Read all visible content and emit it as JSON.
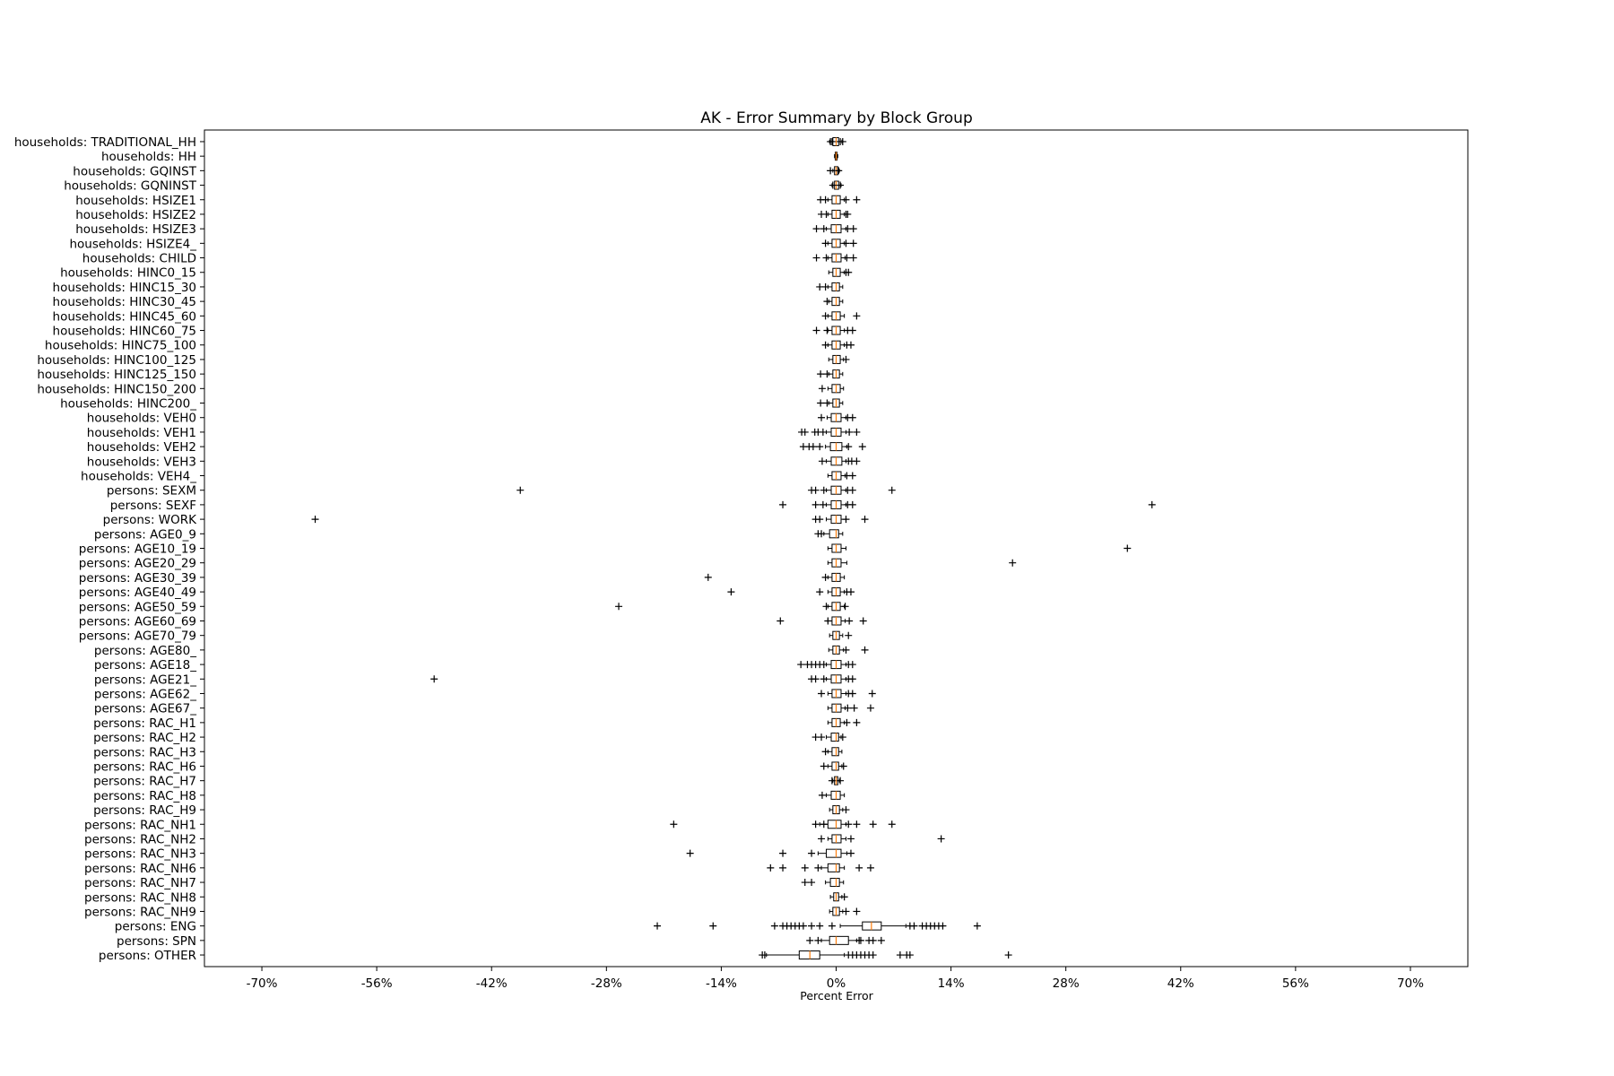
{
  "chart_data": {
    "type": "box",
    "orientation": "horizontal",
    "title": "AK - Error Summary by Block Group",
    "xlabel": "Percent Error",
    "ylabel": "",
    "xlim": [
      -77,
      77
    ],
    "xticks": [
      -70,
      -56,
      -42,
      -28,
      -14,
      0,
      14,
      28,
      42,
      56,
      70
    ],
    "xtick_labels": [
      "-70%",
      "-56%",
      "-42%",
      "-28%",
      "-14%",
      "0%",
      "14%",
      "28%",
      "42%",
      "56%",
      "70%"
    ],
    "grid": false,
    "colors": {
      "box": "#000000",
      "median": "#ff7f0e",
      "flier": "#000000"
    },
    "series": [
      {
        "label": "households: TRADITIONAL_HH",
        "q1": -0.4,
        "median": 0,
        "q3": 0.3,
        "whislo": -0.8,
        "whishi": 0.7,
        "fliers": [
          -0.7,
          -0.5,
          0.5,
          0.8
        ]
      },
      {
        "label": "households: HH",
        "q1": -0.1,
        "median": 0,
        "q3": 0.1,
        "whislo": -0.2,
        "whishi": 0.2,
        "fliers": []
      },
      {
        "label": "households: GQINST",
        "q1": -0.2,
        "median": 0,
        "q3": 0.2,
        "whislo": -0.4,
        "whishi": 0.4,
        "fliers": [
          -0.7,
          0.3
        ]
      },
      {
        "label": "households: GQNINST",
        "q1": -0.2,
        "median": 0,
        "q3": 0.3,
        "whislo": -0.5,
        "whishi": 0.6,
        "fliers": [
          -0.4,
          0.5
        ]
      },
      {
        "label": "households: HSIZE1",
        "q1": -0.5,
        "median": 0,
        "q3": 0.5,
        "whislo": -1.0,
        "whishi": 1.0,
        "fliers": [
          -1.9,
          -1.3,
          1.2,
          2.5
        ]
      },
      {
        "label": "households: HSIZE2",
        "q1": -0.5,
        "median": 0,
        "q3": 0.5,
        "whislo": -1.0,
        "whishi": 1.0,
        "fliers": [
          -1.8,
          -1.2,
          1.2,
          1.4
        ]
      },
      {
        "label": "households: HSIZE3",
        "q1": -0.6,
        "median": 0,
        "q3": 0.6,
        "whislo": -1.2,
        "whishi": 1.2,
        "fliers": [
          -2.4,
          -1.5,
          1.4,
          2.1
        ]
      },
      {
        "label": "households: HSIZE4_",
        "q1": -0.5,
        "median": 0,
        "q3": 0.5,
        "whislo": -1.0,
        "whishi": 1.0,
        "fliers": [
          -1.3,
          1.2,
          2.1
        ]
      },
      {
        "label": "households: CHILD",
        "q1": -0.5,
        "median": 0,
        "q3": 0.6,
        "whislo": -1.0,
        "whishi": 1.1,
        "fliers": [
          -2.4,
          -1.2,
          1.3,
          2.1
        ]
      },
      {
        "label": "households: HINC0_15",
        "q1": -0.4,
        "median": 0,
        "q3": 0.5,
        "whislo": -0.9,
        "whishi": 1.0,
        "fliers": [
          1.2,
          1.5
        ]
      },
      {
        "label": "households: HINC15_30",
        "q1": -0.5,
        "median": 0,
        "q3": 0.4,
        "whislo": -1.0,
        "whishi": 0.8,
        "fliers": [
          -2.0,
          -1.3
        ]
      },
      {
        "label": "households: HINC30_45",
        "q1": -0.5,
        "median": 0,
        "q3": 0.4,
        "whislo": -0.9,
        "whishi": 0.8,
        "fliers": [
          -1.1
        ]
      },
      {
        "label": "households: HINC45_60",
        "q1": -0.5,
        "median": 0,
        "q3": 0.5,
        "whislo": -1.0,
        "whishi": 1.0,
        "fliers": [
          -1.3,
          2.5
        ]
      },
      {
        "label": "households: HINC60_75",
        "q1": -0.5,
        "median": 0,
        "q3": 0.5,
        "whislo": -1.0,
        "whishi": 1.0,
        "fliers": [
          -2.4,
          -1.1,
          1.4,
          2.0
        ]
      },
      {
        "label": "households: HINC75_100",
        "q1": -0.5,
        "median": 0,
        "q3": 0.5,
        "whislo": -1.0,
        "whishi": 1.0,
        "fliers": [
          -1.3,
          1.3,
          1.8
        ]
      },
      {
        "label": "households: HINC100_125",
        "q1": -0.4,
        "median": 0,
        "q3": 0.5,
        "whislo": -0.9,
        "whishi": 0.9,
        "fliers": [
          1.2
        ]
      },
      {
        "label": "households: HINC125_150",
        "q1": -0.4,
        "median": 0,
        "q3": 0.4,
        "whislo": -0.9,
        "whishi": 0.8,
        "fliers": [
          -1.9,
          -1.1
        ]
      },
      {
        "label": "households: HINC150_200",
        "q1": -0.5,
        "median": 0,
        "q3": 0.5,
        "whislo": -1.0,
        "whishi": 0.9,
        "fliers": [
          -1.7
        ]
      },
      {
        "label": "households: HINC200_",
        "q1": -0.4,
        "median": 0,
        "q3": 0.4,
        "whislo": -0.9,
        "whishi": 0.8,
        "fliers": [
          -1.9,
          -1.1
        ]
      },
      {
        "label": "households: VEH0",
        "q1": -0.6,
        "median": 0,
        "q3": 0.6,
        "whislo": -1.1,
        "whishi": 1.2,
        "fliers": [
          -1.8,
          1.4,
          2.0
        ]
      },
      {
        "label": "households: VEH1",
        "q1": -0.6,
        "median": 0,
        "q3": 0.6,
        "whislo": -1.2,
        "whishi": 1.2,
        "fliers": [
          -4.2,
          -3.8,
          -2.6,
          -2.2,
          -1.6,
          1.6,
          2.5
        ]
      },
      {
        "label": "households: VEH2",
        "q1": -0.7,
        "median": 0,
        "q3": 0.7,
        "whislo": -1.3,
        "whishi": 1.3,
        "fliers": [
          -4.0,
          -3.3,
          -2.8,
          -2.0,
          1.5,
          3.2
        ]
      },
      {
        "label": "households: VEH3",
        "q1": -0.6,
        "median": 0,
        "q3": 0.7,
        "whislo": -1.2,
        "whishi": 1.2,
        "fliers": [
          -1.7,
          1.5,
          1.9,
          2.5
        ]
      },
      {
        "label": "households: VEH4_",
        "q1": -0.5,
        "median": 0,
        "q3": 0.6,
        "whislo": -1.0,
        "whishi": 1.1,
        "fliers": [
          1.3,
          2.0
        ]
      },
      {
        "label": "persons: SEXM",
        "q1": -0.6,
        "median": 0,
        "q3": 0.6,
        "whislo": -1.2,
        "whishi": 1.2,
        "fliers": [
          -38.5,
          -3.0,
          -2.5,
          -1.5,
          1.4,
          2.0,
          6.8
        ]
      },
      {
        "label": "persons: SEXF",
        "q1": -0.6,
        "median": 0,
        "q3": 0.6,
        "whislo": -1.2,
        "whishi": 1.2,
        "fliers": [
          -6.5,
          -2.5,
          -1.6,
          1.4,
          2.0,
          38.5
        ]
      },
      {
        "label": "persons: WORK",
        "q1": -0.6,
        "median": 0,
        "q3": 0.6,
        "whislo": -1.2,
        "whishi": 1.2,
        "fliers": [
          -63.5,
          -2.5,
          -2.0,
          1.2,
          3.5
        ]
      },
      {
        "label": "persons: AGE0_9",
        "q1": -0.8,
        "median": 0,
        "q3": 0.3,
        "whislo": -1.5,
        "whishi": 0.8,
        "fliers": [
          -2.2,
          -1.8
        ]
      },
      {
        "label": "persons: AGE10_19",
        "q1": -0.5,
        "median": 0,
        "q3": 0.6,
        "whislo": -1.0,
        "whishi": 1.2,
        "fliers": [
          35.5
        ]
      },
      {
        "label": "persons: AGE20_29",
        "q1": -0.5,
        "median": 0,
        "q3": 0.6,
        "whislo": -1.0,
        "whishi": 1.3,
        "fliers": [
          21.5
        ]
      },
      {
        "label": "persons: AGE30_39",
        "q1": -0.5,
        "median": 0,
        "q3": 0.5,
        "whislo": -1.0,
        "whishi": 1.0,
        "fliers": [
          -15.6,
          -1.3
        ]
      },
      {
        "label": "persons: AGE40_49",
        "q1": -0.5,
        "median": 0,
        "q3": 0.5,
        "whislo": -1.0,
        "whishi": 1.0,
        "fliers": [
          -12.8,
          -2.0,
          1.3,
          1.8
        ]
      },
      {
        "label": "persons: AGE50_59",
        "q1": -0.5,
        "median": 0,
        "q3": 0.5,
        "whislo": -1.0,
        "whishi": 1.0,
        "fliers": [
          -26.5,
          -1.2,
          1.1
        ]
      },
      {
        "label": "persons: AGE60_69",
        "q1": -0.5,
        "median": 0,
        "q3": 0.6,
        "whislo": -1.0,
        "whishi": 1.1,
        "fliers": [
          -6.8,
          -1.0,
          1.6,
          3.3
        ]
      },
      {
        "label": "persons: AGE70_79",
        "q1": -0.4,
        "median": 0,
        "q3": 0.4,
        "whislo": -0.8,
        "whishi": 0.8,
        "fliers": [
          1.5
        ]
      },
      {
        "label": "persons: AGE80_",
        "q1": -0.4,
        "median": 0,
        "q3": 0.4,
        "whislo": -0.9,
        "whishi": 0.9,
        "fliers": [
          1.2,
          3.5
        ]
      },
      {
        "label": "persons: AGE18_",
        "q1": -0.6,
        "median": 0,
        "q3": 0.6,
        "whislo": -1.2,
        "whishi": 1.2,
        "fliers": [
          -4.3,
          -3.5,
          -3.0,
          -2.5,
          -2.0,
          -1.5,
          1.5,
          2.0
        ]
      },
      {
        "label": "persons: AGE21_",
        "q1": -0.6,
        "median": 0,
        "q3": 0.6,
        "whislo": -1.2,
        "whishi": 1.2,
        "fliers": [
          -49.0,
          -3.0,
          -2.5,
          -1.5,
          1.5,
          2.0
        ]
      },
      {
        "label": "persons: AGE62_",
        "q1": -0.5,
        "median": 0,
        "q3": 0.6,
        "whislo": -1.0,
        "whishi": 1.2,
        "fliers": [
          -1.8,
          1.5,
          2.0,
          4.4
        ]
      },
      {
        "label": "persons: AGE67_",
        "q1": -0.5,
        "median": 0,
        "q3": 0.6,
        "whislo": -1.0,
        "whishi": 1.1,
        "fliers": [
          1.4,
          2.2,
          4.2
        ]
      },
      {
        "label": "persons: RAC_H1",
        "q1": -0.5,
        "median": 0,
        "q3": 0.5,
        "whislo": -1.0,
        "whishi": 1.0,
        "fliers": [
          1.3,
          2.5
        ]
      },
      {
        "label": "persons: RAC_H2",
        "q1": -0.6,
        "median": 0,
        "q3": 0.3,
        "whislo": -1.2,
        "whishi": 0.6,
        "fliers": [
          -2.5,
          -1.8,
          0.8
        ]
      },
      {
        "label": "persons: RAC_H3",
        "q1": -0.5,
        "median": 0,
        "q3": 0.3,
        "whislo": -1.0,
        "whishi": 0.7,
        "fliers": [
          -1.3
        ]
      },
      {
        "label": "persons: RAC_H6",
        "q1": -0.5,
        "median": 0,
        "q3": 0.3,
        "whislo": -1.0,
        "whishi": 0.7,
        "fliers": [
          -1.5,
          0.9
        ]
      },
      {
        "label": "persons: RAC_H7",
        "q1": -0.2,
        "median": 0,
        "q3": 0.2,
        "whislo": -0.4,
        "whishi": 0.4,
        "fliers": [
          -0.5,
          0.5
        ]
      },
      {
        "label": "persons: RAC_H8",
        "q1": -0.6,
        "median": 0,
        "q3": 0.5,
        "whislo": -1.2,
        "whishi": 1.0,
        "fliers": [
          -1.7
        ]
      },
      {
        "label": "persons: RAC_H9",
        "q1": -0.4,
        "median": 0,
        "q3": 0.4,
        "whislo": -0.8,
        "whishi": 0.8,
        "fliers": [
          1.2
        ]
      },
      {
        "label": "persons: RAC_NH1",
        "q1": -1.0,
        "median": 0,
        "q3": 0.6,
        "whislo": -2.0,
        "whishi": 1.2,
        "fliers": [
          -19.8,
          -2.5,
          -1.5,
          1.5,
          2.5,
          4.5,
          6.8
        ]
      },
      {
        "label": "persons: RAC_NH2",
        "q1": -0.5,
        "median": 0,
        "q3": 0.6,
        "whislo": -1.0,
        "whishi": 1.2,
        "fliers": [
          -1.8,
          1.8,
          12.8
        ]
      },
      {
        "label": "persons: RAC_NH3",
        "q1": -1.2,
        "median": 0,
        "q3": 0.6,
        "whislo": -2.2,
        "whishi": 1.3,
        "fliers": [
          -17.8,
          -6.5,
          -3.0,
          1.8
        ]
      },
      {
        "label": "persons: RAC_NH6",
        "q1": -1.0,
        "median": 0,
        "q3": 0.4,
        "whislo": -1.8,
        "whishi": 1.0,
        "fliers": [
          -8.0,
          -6.5,
          -3.8,
          -2.2,
          2.8,
          4.2
        ]
      },
      {
        "label": "persons: RAC_NH7",
        "q1": -0.7,
        "median": 0,
        "q3": 0.4,
        "whislo": -1.3,
        "whishi": 0.9,
        "fliers": [
          -3.8,
          -3.0
        ]
      },
      {
        "label": "persons: RAC_NH8",
        "q1": -0.3,
        "median": 0,
        "q3": 0.3,
        "whislo": -0.7,
        "whishi": 0.7,
        "fliers": [
          1.0
        ]
      },
      {
        "label": "persons: RAC_NH9",
        "q1": -0.4,
        "median": 0,
        "q3": 0.4,
        "whislo": -0.8,
        "whishi": 0.8,
        "fliers": [
          1.2,
          2.5
        ]
      },
      {
        "label": "persons: ENG",
        "q1": 3.2,
        "median": 4.3,
        "q3": 5.5,
        "whislo": 0.5,
        "whishi": 8.5,
        "fliers": [
          -21.8,
          -15.0,
          -7.5,
          -6.5,
          -6.0,
          -5.5,
          -5.0,
          -4.5,
          -4.0,
          -3.0,
          -2.0,
          -0.5,
          9.0,
          9.5,
          10.5,
          11.0,
          11.5,
          12.0,
          12.5,
          13.0,
          17.2
        ]
      },
      {
        "label": "persons: SPN",
        "q1": -0.8,
        "median": 0,
        "q3": 1.5,
        "whislo": -1.8,
        "whishi": 2.5,
        "fliers": [
          -3.2,
          -2.2,
          2.8,
          3.0,
          4.0,
          4.5,
          5.5
        ]
      },
      {
        "label": "persons: OTHER",
        "q1": -4.5,
        "median": -3.2,
        "q3": -2.0,
        "whislo": -8.5,
        "whishi": 1.0,
        "fliers": [
          -9.0,
          -8.7,
          1.5,
          2.0,
          2.5,
          3.0,
          3.5,
          4.0,
          4.5,
          7.8,
          8.6,
          9.0,
          21.0
        ]
      }
    ]
  }
}
